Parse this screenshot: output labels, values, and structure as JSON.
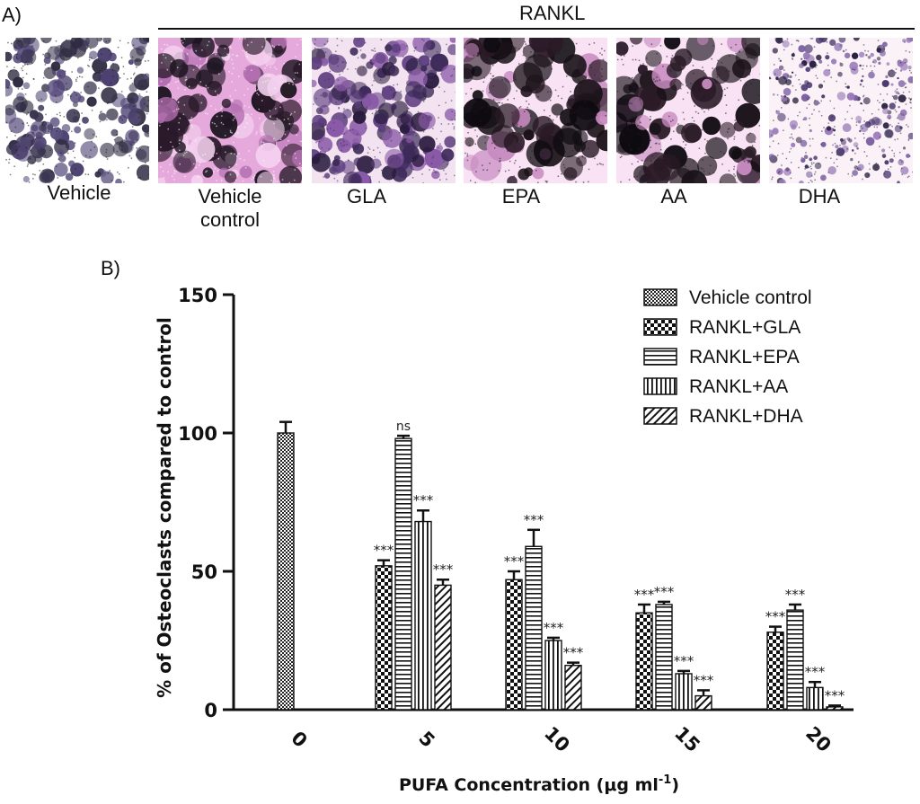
{
  "panel_a": {
    "letter": "A)",
    "group_label": "RANKL",
    "images": [
      {
        "label_line1": "Vehicle",
        "label_line2": "",
        "stain": "blue"
      },
      {
        "label_line1": "Vehicle",
        "label_line2": "control",
        "stain": "pink-dense"
      },
      {
        "label_line1": "GLA",
        "label_line2": "",
        "stain": "purple"
      },
      {
        "label_line1": "EPA",
        "label_line2": "",
        "stain": "pink-dark"
      },
      {
        "label_line1": "AA",
        "label_line2": "",
        "stain": "pink-dark"
      },
      {
        "label_line1": "DHA",
        "label_line2": "",
        "stain": "light"
      }
    ]
  },
  "panel_b": {
    "letter": "B)"
  },
  "chart_data": {
    "type": "bar",
    "ylabel": "% of Osteoclasts compared to control",
    "xlabel_main": "PUFA Concentration (",
    "xlabel_mu": "μ",
    "xlabel_unit": "g ml",
    "xlabel_sup": "-1",
    "xlabel_end": ")",
    "ylim": [
      0,
      150
    ],
    "yticks": [
      "0",
      "50",
      "100",
      "150"
    ],
    "categories": [
      "0",
      "5",
      "10",
      "15",
      "20"
    ],
    "legend_position": "top-right",
    "series": [
      {
        "name": "Vehicle control",
        "pattern": "checker-fine",
        "values": [
          100,
          null,
          null,
          null,
          null
        ],
        "errors": [
          4,
          null,
          null,
          null,
          null
        ],
        "labels": [
          "",
          "",
          "",
          "",
          ""
        ]
      },
      {
        "name": "RANKL+GLA",
        "pattern": "checker-coarse",
        "values": [
          null,
          52,
          47,
          35,
          28
        ],
        "errors": [
          null,
          2,
          3,
          3,
          2
        ],
        "labels": [
          "",
          "***",
          "***",
          "***",
          "***"
        ]
      },
      {
        "name": "RANKL+EPA",
        "pattern": "horizontal",
        "values": [
          null,
          98,
          59,
          38,
          36
        ],
        "errors": [
          null,
          1,
          6,
          1,
          2
        ],
        "labels": [
          "",
          "ns",
          "***",
          "***",
          "***"
        ]
      },
      {
        "name": "RANKL+AA",
        "pattern": "vertical",
        "values": [
          null,
          68,
          25,
          13,
          8
        ],
        "errors": [
          null,
          4,
          1,
          1,
          2
        ],
        "labels": [
          "",
          "***",
          "***",
          "***",
          "***"
        ]
      },
      {
        "name": "RANKL+DHA",
        "pattern": "diagonal",
        "values": [
          null,
          45,
          16,
          5,
          1
        ],
        "errors": [
          null,
          2,
          1,
          2,
          0.5
        ],
        "labels": [
          "",
          "***",
          "***",
          "***",
          "***"
        ]
      }
    ]
  }
}
